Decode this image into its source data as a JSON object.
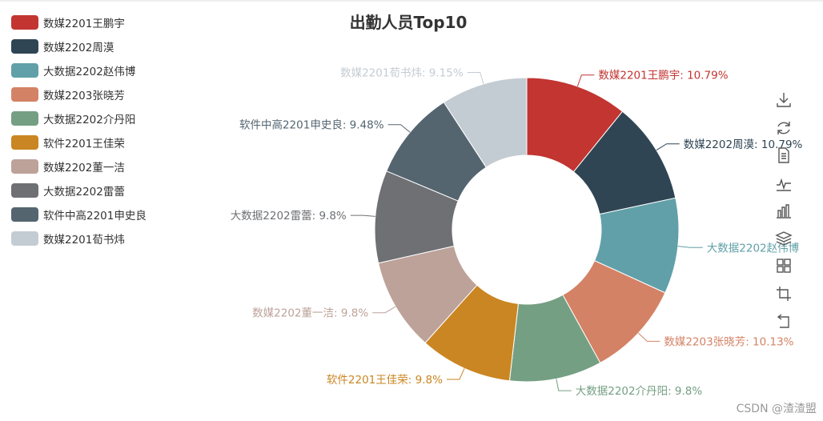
{
  "chart_data": {
    "type": "pie",
    "donut": true,
    "title": "出勤人员Top10",
    "legend_position": "top-left",
    "slices": [
      {
        "name": "数媒2201王鹏宇",
        "value": 10.79,
        "label": "数媒2201王鹏宇: 10.79%",
        "color": "#c23531"
      },
      {
        "name": "数媒2202周漠",
        "value": 10.79,
        "label": "数媒2202周漠: 10.79%",
        "color": "#2f4554"
      },
      {
        "name": "大数据2202赵伟博",
        "value": 10.13,
        "label": "大数据2202赵伟博",
        "color": "#61a0a8"
      },
      {
        "name": "数媒2203张晓芳",
        "value": 10.13,
        "label": "数媒2203张晓芳: 10.13%",
        "color": "#d48265"
      },
      {
        "name": "大数据2202介丹阳",
        "value": 9.8,
        "label": "大数据2202介丹阳: 9.8%",
        "color": "#749f83"
      },
      {
        "name": "软件2201王佳荣",
        "value": 9.8,
        "label": "软件2201王佳荣: 9.8%",
        "color": "#ca8622"
      },
      {
        "name": "数媒2202董一洁",
        "value": 9.8,
        "label": "数媒2202董一洁: 9.8%",
        "color": "#bda29a"
      },
      {
        "name": "大数据2202雷蕾",
        "value": 9.8,
        "label": "大数据2202雷蕾: 9.8%",
        "color": "#6e7074"
      },
      {
        "name": "软件中高2201申史良",
        "value": 9.48,
        "label": "软件中高2201申史良: 9.48%",
        "color": "#546570"
      },
      {
        "name": "数媒2201荀书炜",
        "value": 9.15,
        "label": "数媒2201荀书炜: 9.15%",
        "color": "#c4ccd3"
      }
    ]
  },
  "legend": {
    "items": [
      {
        "label": "数媒2201王鹏宇",
        "color": "#c23531"
      },
      {
        "label": "数媒2202周漠",
        "color": "#2f4554"
      },
      {
        "label": "大数据2202赵伟博",
        "color": "#61a0a8"
      },
      {
        "label": "数媒2203张晓芳",
        "color": "#d48265"
      },
      {
        "label": "大数据2202介丹阳",
        "color": "#749f83"
      },
      {
        "label": "软件2201王佳荣",
        "color": "#ca8622"
      },
      {
        "label": "数媒2202董一洁",
        "color": "#bda29a"
      },
      {
        "label": "大数据2202雷蕾",
        "color": "#6e7074"
      },
      {
        "label": "软件中高2201申史良",
        "color": "#546570"
      },
      {
        "label": "数媒2201荀书炜",
        "color": "#c4ccd3"
      }
    ]
  },
  "toolbox": {
    "icons": [
      "download-icon",
      "refresh-icon",
      "data-view-icon",
      "line-chart-icon",
      "bar-chart-icon",
      "stack-icon",
      "tiled-icon",
      "zoom-icon",
      "zoom-reset-icon"
    ]
  },
  "watermark": "CSDN @渣渣盟"
}
